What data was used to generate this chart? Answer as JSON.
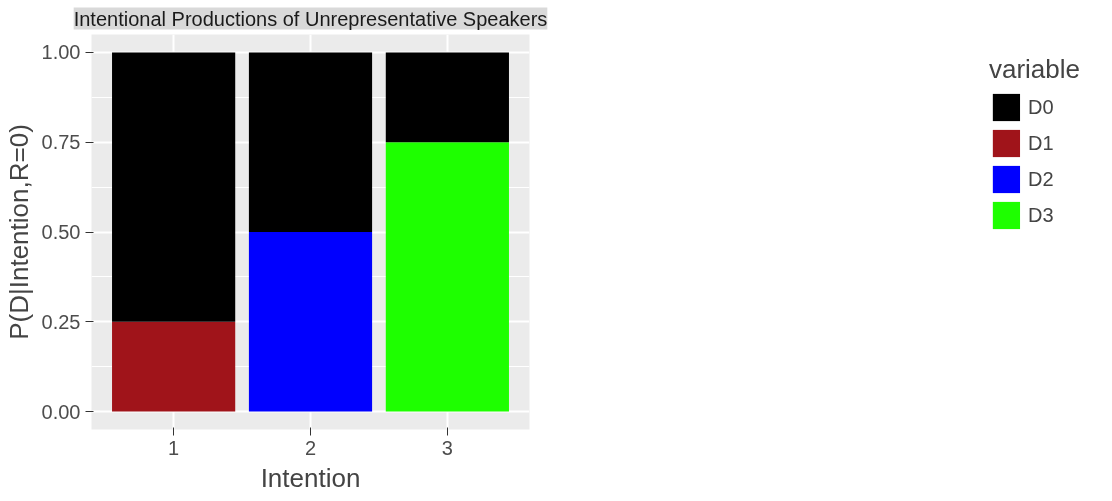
{
  "chart_data": {
    "type": "bar",
    "title": "Intentional Productions of Unrepresentative Speakers",
    "xlabel": "Intention",
    "ylabel": "P(D|Intention,R=0)",
    "legend_title": "variable",
    "categories": [
      "1",
      "2",
      "3"
    ],
    "stacked": true,
    "series": [
      {
        "name": "D3",
        "color": "#1eff00",
        "values": [
          0,
          0,
          0.75
        ]
      },
      {
        "name": "D2",
        "color": "#0000ff",
        "values": [
          0,
          0.5,
          0
        ]
      },
      {
        "name": "D1",
        "color": "#a0141a",
        "values": [
          0.25,
          0,
          0
        ]
      },
      {
        "name": "D0",
        "color": "#000000",
        "values": [
          0.75,
          0.5,
          0.25
        ]
      }
    ],
    "ylim": [
      -0.05,
      1.05
    ],
    "yticks": [
      {
        "value": 0,
        "label": "0.00"
      },
      {
        "value": 0.25,
        "label": "0.25"
      },
      {
        "value": 0.5,
        "label": "0.50"
      },
      {
        "value": 0.75,
        "label": "0.75"
      },
      {
        "value": 1,
        "label": "1.00"
      }
    ],
    "grid": true,
    "legend": "right"
  }
}
